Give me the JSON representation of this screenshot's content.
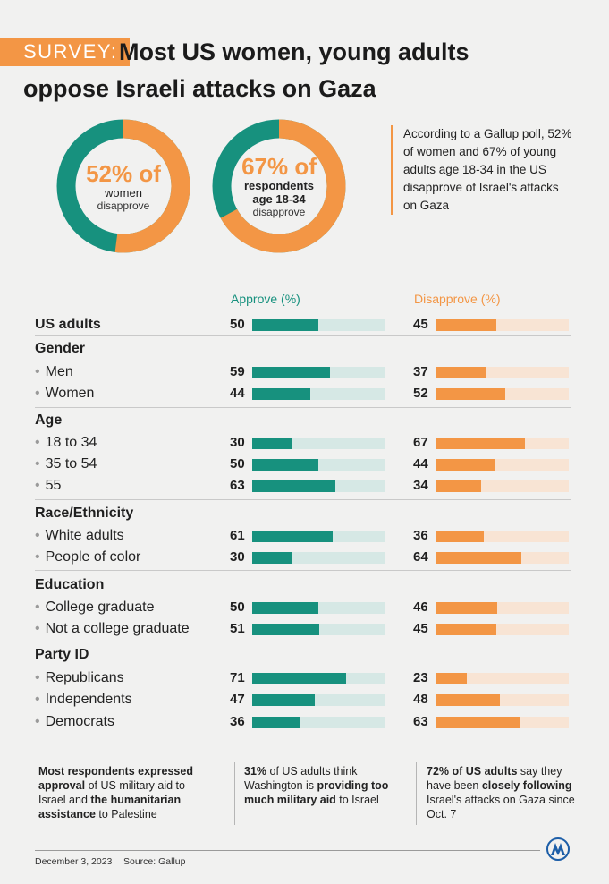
{
  "header": {
    "tag": "SURVEY:",
    "title_line1": "Most US women, young adults",
    "title_line2": "oppose Israeli attacks on Gaza"
  },
  "donuts": [
    {
      "big": "52% of",
      "mid": "women",
      "small": "disapprove",
      "value": 52
    },
    {
      "big": "67% of",
      "mid": "respondents",
      "mid2": "age 18-34",
      "small": "disapprove",
      "value": 67
    }
  ],
  "side_note": "According to a Gallup poll, 52% of women and 67% of young adults age 18-34 in the US disapprove of Israel's attacks on Gaza",
  "columns": {
    "approve": "Approve (%)",
    "disapprove": "Disapprove (%)"
  },
  "chart_data": {
    "type": "bar",
    "title": "Most US women, young adults oppose Israeli attacks on Gaza",
    "series_names": [
      "Approve (%)",
      "Disapprove (%)"
    ],
    "xlim": [
      0,
      100
    ],
    "groups": [
      {
        "name": "",
        "rows": [
          {
            "label": "US adults",
            "approve": 50,
            "disapprove": 45
          }
        ]
      },
      {
        "name": "Gender",
        "rows": [
          {
            "label": "Men",
            "approve": 59,
            "disapprove": 37
          },
          {
            "label": "Women",
            "approve": 44,
            "disapprove": 52
          }
        ]
      },
      {
        "name": "Age",
        "rows": [
          {
            "label": "18 to 34",
            "approve": 30,
            "disapprove": 67
          },
          {
            "label": "35 to 54",
            "approve": 50,
            "disapprove": 44
          },
          {
            "label": "55",
            "approve": 63,
            "disapprove": 34
          }
        ]
      },
      {
        "name": "Race/Ethnicity",
        "rows": [
          {
            "label": "White adults",
            "approve": 61,
            "disapprove": 36
          },
          {
            "label": "People of color",
            "approve": 30,
            "disapprove": 64
          }
        ]
      },
      {
        "name": "Education",
        "rows": [
          {
            "label": "College graduate",
            "approve": 50,
            "disapprove": 46
          },
          {
            "label": "Not a college graduate",
            "approve": 51,
            "disapprove": 45
          }
        ]
      },
      {
        "name": "Party ID",
        "rows": [
          {
            "label": "Republicans",
            "approve": 71,
            "disapprove": 23
          },
          {
            "label": "Independents",
            "approve": 47,
            "disapprove": 48
          },
          {
            "label": "Democrats",
            "approve": 36,
            "disapprove": 63
          }
        ]
      }
    ]
  },
  "footnotes": [
    {
      "b1": "Most respondents expressed approval",
      "t1": " of US military aid to Israel and ",
      "b2": "the humanitarian assistance",
      "t2": " to Palestine"
    },
    {
      "b1": "31%",
      "t1": " of US adults think Washington is ",
      "b2": "providing too much military aid",
      "t2": " to Israel"
    },
    {
      "b1": "72% of US adults",
      "t1": " say they have been ",
      "b2": "closely following",
      "t2": " Israel's attacks on Gaza since Oct. 7"
    }
  ],
  "footer": {
    "date": "December 3, 2023",
    "source": "Source: Gallup"
  },
  "colors": {
    "approve": "#17917e",
    "disapprove": "#f39645",
    "approve_track": "#d6e8e5",
    "disapprove_track": "#f8e4d4"
  }
}
